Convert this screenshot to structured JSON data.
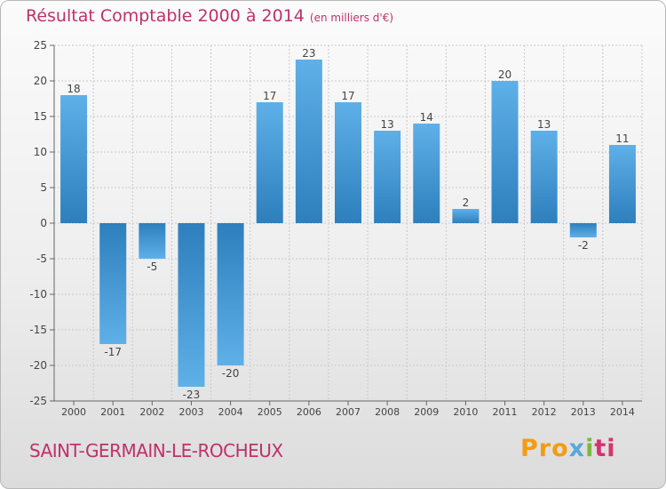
{
  "header": {
    "title": "Résultat Comptable 2000 à 2014",
    "subtitle": "(en milliers d'€)"
  },
  "footer": {
    "commune": "SAINT-GERMAIN-LE-ROCHEUX",
    "logo": [
      "Pro",
      "x",
      "i",
      "ti"
    ]
  },
  "colors": {
    "title": "#c0306a",
    "bar_dark": "#2d7fbd",
    "bar_light": "#5fb0e8",
    "grid": "#c9c9c9"
  },
  "chart_data": {
    "type": "bar",
    "title": "Résultat Comptable 2000 à 2014",
    "subtitle": "(en milliers d'€)",
    "categories": [
      "2000",
      "2001",
      "2002",
      "2003",
      "2004",
      "2005",
      "2006",
      "2007",
      "2008",
      "2009",
      "2010",
      "2011",
      "2012",
      "2013",
      "2014"
    ],
    "values": [
      18,
      -17,
      -5,
      -23,
      -20,
      17,
      23,
      17,
      13,
      14,
      2,
      20,
      13,
      -2,
      11
    ],
    "ylim": [
      -25,
      25
    ],
    "yticks": [
      -25,
      -20,
      -15,
      -10,
      -5,
      0,
      5,
      10,
      15,
      20,
      25
    ],
    "xlabel": "",
    "ylabel": "",
    "grid": true
  }
}
